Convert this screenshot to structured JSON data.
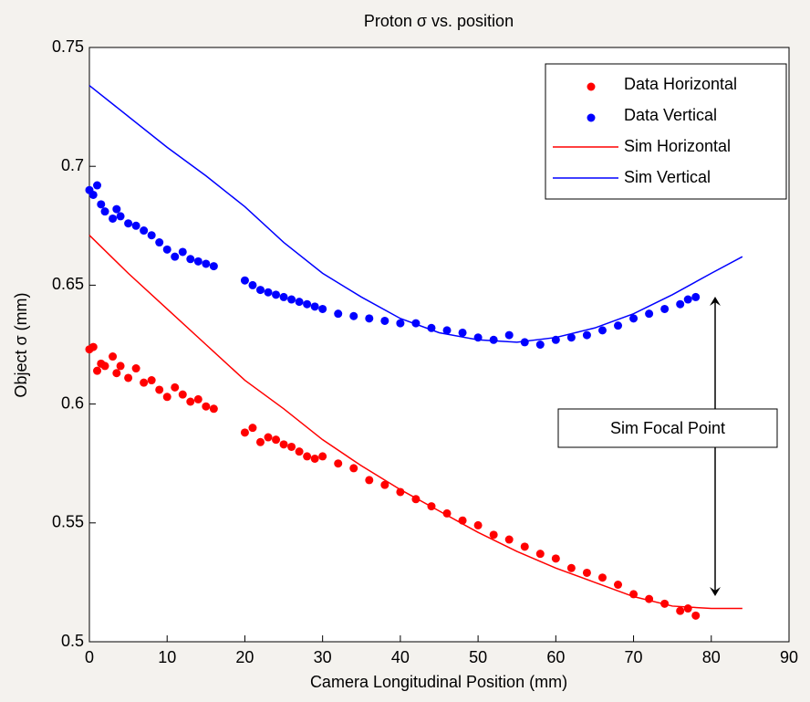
{
  "chart_data": {
    "type": "scatter",
    "title": "Proton  σ vs. position",
    "x_label": "Camera Longitudinal Position (mm)",
    "y_label": "Object σ (mm)",
    "xlim": [
      0,
      90
    ],
    "ylim": [
      0.5,
      0.75
    ],
    "xticks": [
      0,
      10,
      20,
      30,
      40,
      50,
      60,
      70,
      80,
      90
    ],
    "yticks": [
      0.5,
      0.55,
      0.6,
      0.65,
      0.7,
      0.75
    ],
    "legend_position": "upper right",
    "annotation": "Sim Focal Point",
    "series": [
      {
        "name": "Data Horizontal",
        "type": "scatter",
        "color": "#ff0000",
        "x": [
          0,
          0.5,
          1,
          1.5,
          2,
          3,
          3.5,
          4,
          5,
          6,
          7,
          8,
          9,
          10,
          11,
          12,
          13,
          14,
          15,
          16,
          20,
          21,
          22,
          23,
          24,
          25,
          26,
          27,
          28,
          29,
          30,
          32,
          34,
          36,
          38,
          40,
          42,
          44,
          46,
          48,
          50,
          52,
          54,
          56,
          58,
          60,
          62,
          64,
          66,
          68,
          70,
          72,
          74,
          76,
          77,
          78
        ],
        "values": [
          0.623,
          0.624,
          0.614,
          0.617,
          0.616,
          0.62,
          0.613,
          0.616,
          0.611,
          0.615,
          0.609,
          0.61,
          0.606,
          0.603,
          0.607,
          0.604,
          0.601,
          0.602,
          0.599,
          0.598,
          0.588,
          0.59,
          0.584,
          0.586,
          0.585,
          0.583,
          0.582,
          0.58,
          0.578,
          0.577,
          0.578,
          0.575,
          0.573,
          0.568,
          0.566,
          0.563,
          0.56,
          0.557,
          0.554,
          0.551,
          0.549,
          0.545,
          0.543,
          0.54,
          0.537,
          0.535,
          0.531,
          0.529,
          0.527,
          0.524,
          0.52,
          0.518,
          0.516,
          0.513,
          0.514,
          0.511
        ]
      },
      {
        "name": "Data Vertical",
        "type": "scatter",
        "color": "#0000ff",
        "x": [
          0,
          0.5,
          1,
          1.5,
          2,
          3,
          3.5,
          4,
          5,
          6,
          7,
          8,
          9,
          10,
          11,
          12,
          13,
          14,
          15,
          16,
          20,
          21,
          22,
          23,
          24,
          25,
          26,
          27,
          28,
          29,
          30,
          32,
          34,
          36,
          38,
          40,
          42,
          44,
          46,
          48,
          50,
          52,
          54,
          56,
          58,
          60,
          62,
          64,
          66,
          68,
          70,
          72,
          74,
          76,
          77,
          78
        ],
        "values": [
          0.69,
          0.688,
          0.692,
          0.684,
          0.681,
          0.678,
          0.682,
          0.679,
          0.676,
          0.675,
          0.673,
          0.671,
          0.668,
          0.665,
          0.662,
          0.664,
          0.661,
          0.66,
          0.659,
          0.658,
          0.652,
          0.65,
          0.648,
          0.647,
          0.646,
          0.645,
          0.644,
          0.643,
          0.642,
          0.641,
          0.64,
          0.638,
          0.637,
          0.636,
          0.635,
          0.634,
          0.634,
          0.632,
          0.631,
          0.63,
          0.628,
          0.627,
          0.629,
          0.626,
          0.625,
          0.627,
          0.628,
          0.629,
          0.631,
          0.633,
          0.636,
          0.638,
          0.64,
          0.642,
          0.644,
          0.645
        ]
      },
      {
        "name": "Sim Horizontal",
        "type": "line",
        "color": "#ff0000",
        "x": [
          0,
          5,
          10,
          15,
          20,
          25,
          30,
          35,
          40,
          45,
          50,
          55,
          60,
          65,
          70,
          75,
          80,
          84
        ],
        "values": [
          0.671,
          0.655,
          0.64,
          0.625,
          0.61,
          0.598,
          0.585,
          0.574,
          0.564,
          0.555,
          0.546,
          0.538,
          0.531,
          0.525,
          0.519,
          0.515,
          0.514,
          0.514
        ]
      },
      {
        "name": "Sim Vertical",
        "type": "line",
        "color": "#0000ff",
        "x": [
          0,
          5,
          10,
          15,
          20,
          25,
          30,
          35,
          40,
          45,
          50,
          55,
          60,
          65,
          70,
          75,
          80,
          84
        ],
        "values": [
          0.734,
          0.721,
          0.708,
          0.696,
          0.683,
          0.668,
          0.655,
          0.645,
          0.636,
          0.63,
          0.627,
          0.626,
          0.628,
          0.632,
          0.638,
          0.646,
          0.655,
          0.662
        ]
      }
    ]
  }
}
